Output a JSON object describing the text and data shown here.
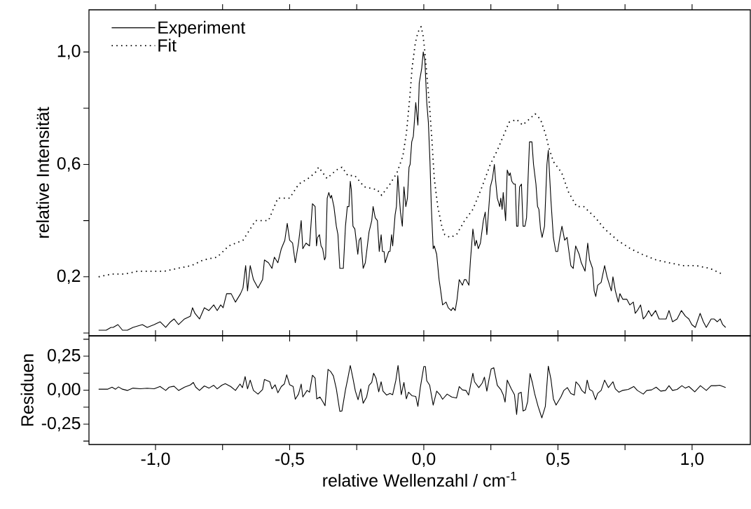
{
  "chart_data": [
    {
      "type": "line",
      "ylabel": "relative Intensität",
      "legend": "top left",
      "tick_labels": "y",
      "xlim": [
        -1.248,
        1.217
      ],
      "ylim": [
        -0.01,
        1.15
      ],
      "xticks": [
        {
          "value": -1.0,
          "label": null
        },
        {
          "value": -0.75,
          "label": null
        },
        {
          "value": -0.5,
          "label": null
        },
        {
          "value": -0.25,
          "label": null
        },
        {
          "value": 0.0,
          "label": null
        },
        {
          "value": 0.25,
          "label": null
        },
        {
          "value": 0.5,
          "label": null
        },
        {
          "value": 0.75,
          "label": null
        },
        {
          "value": 1.0,
          "label": null
        }
      ],
      "yticks": [
        {
          "value": 0.0,
          "label": null
        },
        {
          "value": 0.2,
          "label": "0,2"
        },
        {
          "value": 0.4,
          "label": null
        },
        {
          "value": 0.6,
          "label": "0,6"
        },
        {
          "value": 0.8,
          "label": null
        },
        {
          "value": 1.0,
          "label": "1,0"
        }
      ],
      "series": [
        {
          "name": "Experiment",
          "color": "#000000",
          "line_style": "solid",
          "x": [
            -1.212,
            -1.184,
            -1.166,
            -1.158,
            -1.14,
            -1.123,
            -1.105,
            -1.084,
            -1.049,
            -1.031,
            -1.005,
            -0.983,
            -0.962,
            -0.944,
            -0.931,
            -0.914,
            -0.892,
            -0.87,
            -0.862,
            -0.853,
            -0.836,
            -0.818,
            -0.801,
            -0.783,
            -0.77,
            -0.757,
            -0.748,
            -0.735,
            -0.718,
            -0.702,
            -0.683,
            -0.674,
            -0.664,
            -0.657,
            -0.647,
            -0.635,
            -0.618,
            -0.601,
            -0.594,
            -0.579,
            -0.566,
            -0.557,
            -0.544,
            -0.531,
            -0.518,
            -0.509,
            -0.5,
            -0.489,
            -0.479,
            -0.467,
            -0.457,
            -0.451,
            -0.439,
            -0.426,
            -0.415,
            -0.405,
            -0.4,
            -0.396,
            -0.389,
            -0.383,
            -0.377,
            -0.37,
            -0.366,
            -0.36,
            -0.354,
            -0.348,
            -0.344,
            -0.335,
            -0.326,
            -0.32,
            -0.313,
            -0.305,
            -0.3,
            -0.292,
            -0.285,
            -0.279,
            -0.274,
            -0.27,
            -0.264,
            -0.257,
            -0.246,
            -0.241,
            -0.235,
            -0.226,
            -0.218,
            -0.204,
            -0.194,
            -0.189,
            -0.181,
            -0.173,
            -0.166,
            -0.159,
            -0.154,
            -0.148,
            -0.144,
            -0.131,
            -0.126,
            -0.12,
            -0.116,
            -0.107,
            -0.102,
            -0.097,
            -0.087,
            -0.08,
            -0.074,
            -0.067,
            -0.061,
            -0.055,
            -0.051,
            -0.045,
            -0.039,
            -0.03,
            -0.022,
            -0.017,
            -0.008,
            -0.002,
            0.004,
            0.011,
            0.017,
            0.023,
            0.028,
            0.035,
            0.039,
            0.048,
            0.057,
            0.063,
            0.07,
            0.083,
            0.091,
            0.102,
            0.109,
            0.117,
            0.124,
            0.132,
            0.144,
            0.151,
            0.157,
            0.168,
            0.174,
            0.183,
            0.191,
            0.196,
            0.203,
            0.211,
            0.222,
            0.229,
            0.235,
            0.248,
            0.256,
            0.263,
            0.267,
            0.274,
            0.283,
            0.287,
            0.292,
            0.296,
            0.305,
            0.311,
            0.318,
            0.322,
            0.328,
            0.335,
            0.341,
            0.346,
            0.351,
            0.357,
            0.364,
            0.37,
            0.377,
            0.383,
            0.394,
            0.403,
            0.409,
            0.418,
            0.424,
            0.429,
            0.435,
            0.441,
            0.45,
            0.459,
            0.464,
            0.474,
            0.483,
            0.492,
            0.499,
            0.507,
            0.515,
            0.525,
            0.534,
            0.548,
            0.557,
            0.566,
            0.579,
            0.587,
            0.601,
            0.611,
            0.618,
            0.629,
            0.635,
            0.641,
            0.648,
            0.661,
            0.674,
            0.683,
            0.699,
            0.705,
            0.714,
            0.725,
            0.731,
            0.742,
            0.757,
            0.768,
            0.781,
            0.788,
            0.796,
            0.808,
            0.818,
            0.827,
            0.838,
            0.849,
            0.864,
            0.877,
            0.892,
            0.903,
            0.914,
            0.927,
            0.944,
            0.96,
            0.975,
            0.988,
            0.999,
            1.012,
            1.03,
            1.042,
            1.053,
            1.071,
            1.082,
            1.094,
            1.105,
            1.114,
            1.125
          ],
          "values": [
            0.01,
            0.01,
            0.02,
            0.02,
            0.03,
            0.01,
            0.01,
            0.02,
            0.03,
            0.02,
            0.03,
            0.04,
            0.02,
            0.04,
            0.05,
            0.03,
            0.05,
            0.06,
            0.09,
            0.07,
            0.05,
            0.09,
            0.08,
            0.1,
            0.08,
            0.1,
            0.09,
            0.14,
            0.14,
            0.11,
            0.14,
            0.16,
            0.24,
            0.15,
            0.24,
            0.19,
            0.16,
            0.19,
            0.26,
            0.25,
            0.23,
            0.27,
            0.25,
            0.3,
            0.33,
            0.39,
            0.33,
            0.32,
            0.25,
            0.32,
            0.4,
            0.3,
            0.32,
            0.31,
            0.46,
            0.45,
            0.31,
            0.34,
            0.35,
            0.31,
            0.3,
            0.26,
            0.27,
            0.48,
            0.5,
            0.48,
            0.49,
            0.45,
            0.38,
            0.35,
            0.23,
            0.23,
            0.23,
            0.38,
            0.45,
            0.45,
            0.54,
            0.51,
            0.38,
            0.37,
            0.28,
            0.33,
            0.34,
            0.23,
            0.25,
            0.36,
            0.4,
            0.45,
            0.41,
            0.4,
            0.29,
            0.35,
            0.29,
            0.29,
            0.25,
            0.29,
            0.29,
            0.35,
            0.31,
            0.42,
            0.45,
            0.56,
            0.43,
            0.38,
            0.52,
            0.45,
            0.48,
            0.59,
            0.6,
            0.68,
            0.7,
            0.82,
            0.74,
            0.89,
            0.94,
            1.0,
            0.97,
            0.82,
            0.75,
            0.61,
            0.45,
            0.3,
            0.31,
            0.28,
            0.19,
            0.15,
            0.1,
            0.11,
            0.09,
            0.08,
            0.09,
            0.08,
            0.12,
            0.19,
            0.17,
            0.19,
            0.19,
            0.17,
            0.26,
            0.37,
            0.31,
            0.33,
            0.3,
            0.32,
            0.4,
            0.43,
            0.35,
            0.52,
            0.55,
            0.6,
            0.55,
            0.48,
            0.45,
            0.48,
            0.44,
            0.5,
            0.4,
            0.58,
            0.56,
            0.57,
            0.54,
            0.53,
            0.53,
            0.38,
            0.38,
            0.52,
            0.53,
            0.38,
            0.38,
            0.41,
            0.68,
            0.68,
            0.6,
            0.53,
            0.45,
            0.44,
            0.37,
            0.34,
            0.38,
            0.6,
            0.65,
            0.47,
            0.34,
            0.29,
            0.29,
            0.34,
            0.38,
            0.33,
            0.34,
            0.24,
            0.23,
            0.31,
            0.28,
            0.25,
            0.22,
            0.32,
            0.26,
            0.23,
            0.15,
            0.13,
            0.17,
            0.18,
            0.24,
            0.2,
            0.15,
            0.2,
            0.15,
            0.11,
            0.14,
            0.12,
            0.12,
            0.1,
            0.11,
            0.07,
            0.08,
            0.1,
            0.05,
            0.06,
            0.08,
            0.06,
            0.08,
            0.05,
            0.05,
            0.05,
            0.08,
            0.04,
            0.05,
            0.08,
            0.06,
            0.05,
            0.03,
            0.02,
            0.07,
            0.04,
            0.02,
            0.05,
            0.05,
            0.04,
            0.05,
            0.03,
            0.02
          ]
        },
        {
          "name": "Fit",
          "color": "#000000",
          "line_style": "dotted",
          "x": [
            -1.212,
            -1.162,
            -1.114,
            -1.066,
            -1.014,
            -0.966,
            -0.918,
            -0.866,
            -0.822,
            -0.77,
            -0.727,
            -0.674,
            -0.627,
            -0.579,
            -0.544,
            -0.5,
            -0.466,
            -0.431,
            -0.405,
            -0.392,
            -0.361,
            -0.326,
            -0.305,
            -0.283,
            -0.257,
            -0.222,
            -0.174,
            -0.157,
            -0.126,
            -0.1,
            -0.078,
            -0.065,
            -0.052,
            -0.044,
            -0.032,
            -0.022,
            -0.01,
            -0.003,
            0.003,
            0.013,
            0.022,
            0.03,
            0.039,
            0.052,
            0.067,
            0.078,
            0.098,
            0.122,
            0.152,
            0.183,
            0.213,
            0.248,
            0.274,
            0.296,
            0.318,
            0.346,
            0.368,
            0.392,
            0.415,
            0.435,
            0.453,
            0.466,
            0.483,
            0.514,
            0.54,
            0.57,
            0.596,
            0.64,
            0.674,
            0.722,
            0.77,
            0.814,
            0.866,
            0.914,
            0.966,
            1.014,
            1.066,
            1.112
          ],
          "values": [
            0.2,
            0.21,
            0.21,
            0.22,
            0.22,
            0.22,
            0.23,
            0.24,
            0.26,
            0.27,
            0.31,
            0.33,
            0.4,
            0.4,
            0.48,
            0.48,
            0.53,
            0.55,
            0.57,
            0.59,
            0.55,
            0.58,
            0.59,
            0.56,
            0.56,
            0.52,
            0.51,
            0.49,
            0.53,
            0.57,
            0.63,
            0.71,
            0.84,
            0.94,
            1.03,
            1.07,
            1.09,
            1.06,
            1.01,
            0.9,
            0.8,
            0.69,
            0.55,
            0.45,
            0.38,
            0.35,
            0.34,
            0.35,
            0.4,
            0.44,
            0.51,
            0.6,
            0.65,
            0.7,
            0.75,
            0.76,
            0.74,
            0.76,
            0.78,
            0.76,
            0.71,
            0.66,
            0.61,
            0.57,
            0.5,
            0.45,
            0.45,
            0.41,
            0.37,
            0.33,
            0.3,
            0.28,
            0.26,
            0.25,
            0.24,
            0.24,
            0.23,
            0.21
          ]
        }
      ]
    },
    {
      "type": "line",
      "xlabel": "relative Wellenzahl / cm$^{-1}$",
      "ylabel": "Residuen",
      "xlim": [
        -1.248,
        1.217
      ],
      "ylim": [
        -0.4,
        0.4
      ],
      "xticks": [
        {
          "value": -1.0,
          "label": "-1,0"
        },
        {
          "value": -0.75,
          "label": null
        },
        {
          "value": -0.5,
          "label": "-0,5"
        },
        {
          "value": -0.25,
          "label": null
        },
        {
          "value": 0.0,
          "label": "0,0"
        },
        {
          "value": 0.25,
          "label": null
        },
        {
          "value": 0.5,
          "label": "0,5"
        },
        {
          "value": 0.75,
          "label": null
        },
        {
          "value": 1.0,
          "label": "1,0"
        }
      ],
      "yticks": [
        {
          "value": -0.375,
          "label": null
        },
        {
          "value": -0.25,
          "label": "-0,25"
        },
        {
          "value": -0.125,
          "label": null
        },
        {
          "value": 0.0,
          "label": "0,00"
        },
        {
          "value": 0.125,
          "label": null
        },
        {
          "value": 0.25,
          "label": "0,25"
        },
        {
          "value": 0.375,
          "label": null
        }
      ],
      "series": [
        {
          "color": "#000000",
          "line_style": "solid",
          "x": [
            -1.212,
            -1.179,
            -1.162,
            -1.149,
            -1.138,
            -1.123,
            -1.105,
            -1.084,
            -1.057,
            -1.031,
            -1.005,
            -0.983,
            -0.962,
            -0.949,
            -0.931,
            -0.914,
            -0.892,
            -0.87,
            -0.859,
            -0.85,
            -0.836,
            -0.818,
            -0.801,
            -0.783,
            -0.77,
            -0.753,
            -0.74,
            -0.72,
            -0.702,
            -0.685,
            -0.676,
            -0.666,
            -0.657,
            -0.647,
            -0.635,
            -0.618,
            -0.601,
            -0.594,
            -0.574,
            -0.566,
            -0.554,
            -0.544,
            -0.531,
            -0.52,
            -0.511,
            -0.5,
            -0.487,
            -0.479,
            -0.467,
            -0.457,
            -0.451,
            -0.435,
            -0.426,
            -0.415,
            -0.405,
            -0.399,
            -0.387,
            -0.374,
            -0.368,
            -0.357,
            -0.348,
            -0.337,
            -0.326,
            -0.313,
            -0.305,
            -0.292,
            -0.283,
            -0.274,
            -0.265,
            -0.255,
            -0.245,
            -0.235,
            -0.226,
            -0.213,
            -0.204,
            -0.194,
            -0.187,
            -0.178,
            -0.168,
            -0.159,
            -0.152,
            -0.139,
            -0.126,
            -0.116,
            -0.104,
            -0.096,
            -0.084,
            -0.074,
            -0.065,
            -0.057,
            -0.044,
            -0.03,
            -0.022,
            -0.013,
            0.0,
            0.006,
            0.011,
            0.022,
            0.035,
            0.048,
            0.061,
            0.07,
            0.087,
            0.104,
            0.122,
            0.132,
            0.144,
            0.157,
            0.167,
            0.183,
            0.189,
            0.205,
            0.218,
            0.226,
            0.235,
            0.244,
            0.251,
            0.261,
            0.274,
            0.287,
            0.296,
            0.303,
            0.311,
            0.326,
            0.338,
            0.346,
            0.353,
            0.363,
            0.37,
            0.379,
            0.387,
            0.396,
            0.405,
            0.413,
            0.426,
            0.44,
            0.453,
            0.464,
            0.474,
            0.483,
            0.493,
            0.511,
            0.522,
            0.535,
            0.548,
            0.561,
            0.567,
            0.579,
            0.589,
            0.601,
            0.609,
            0.618,
            0.629,
            0.64,
            0.648,
            0.661,
            0.674,
            0.688,
            0.705,
            0.714,
            0.727,
            0.74,
            0.762,
            0.783,
            0.796,
            0.818,
            0.831,
            0.849,
            0.866,
            0.883,
            0.901,
            0.914,
            0.927,
            0.944,
            0.962,
            0.975,
            0.988,
            1.01,
            1.031,
            1.053,
            1.071,
            1.088,
            1.103,
            1.125
          ],
          "values": [
            0.007,
            0.007,
            0.022,
            0.007,
            0.024,
            0.007,
            -0.002,
            0.015,
            0.01,
            0.014,
            0.01,
            0.027,
            -0.002,
            0.022,
            0.029,
            -0.002,
            0.022,
            0.039,
            0.057,
            0.022,
            -0.002,
            0.031,
            0.015,
            0.036,
            0.01,
            0.036,
            0.048,
            0.027,
            -0.002,
            0.045,
            0.019,
            0.1,
            0.01,
            0.074,
            -0.002,
            -0.029,
            0.005,
            0.079,
            0.062,
            0.01,
            0.039,
            -0.019,
            0.027,
            0.045,
            0.113,
            0.04,
            0.027,
            -0.067,
            -0.029,
            0.045,
            -0.05,
            -0.002,
            -0.015,
            0.11,
            0.088,
            -0.064,
            -0.05,
            -0.093,
            -0.115,
            0.153,
            0.139,
            0.105,
            0.01,
            -0.156,
            -0.153,
            0.002,
            0.088,
            0.182,
            0.096,
            -0.007,
            -0.07,
            0.01,
            -0.096,
            -0.05,
            0.036,
            0.057,
            0.125,
            0.088,
            -0.012,
            0.062,
            -0.007,
            -0.036,
            -0.024,
            -0.033,
            0.074,
            0.182,
            -0.033,
            0.057,
            -0.064,
            -0.015,
            -0.041,
            -0.046,
            -0.119,
            0.019,
            0.174,
            0.174,
            0.07,
            0.036,
            -0.11,
            -0.007,
            -0.036,
            -0.067,
            -0.029,
            -0.05,
            -0.058,
            0.027,
            0.002,
            -0.002,
            -0.036,
            0.125,
            0.062,
            0.019,
            0.053,
            0.096,
            -0.007,
            0.088,
            0.156,
            0.165,
            0.036,
            0.005,
            -0.033,
            -0.088,
            0.074,
            0.01,
            -0.033,
            -0.179,
            -0.024,
            -0.015,
            -0.153,
            -0.144,
            -0.084,
            0.122,
            0.053,
            -0.024,
            -0.119,
            -0.204,
            -0.119,
            0.177,
            0.079,
            -0.064,
            -0.11,
            -0.05,
            -0.002,
            0.019,
            -0.024,
            -0.036,
            0.062,
            0.036,
            -0.002,
            -0.024,
            0.074,
            0.005,
            -0.007,
            -0.07,
            -0.024,
            -0.002,
            0.074,
            0.019,
            0.062,
            0.01,
            -0.015,
            -0.002,
            0.005,
            0.027,
            -0.002,
            -0.029,
            -0.002,
            0.002,
            0.022,
            -0.007,
            -0.002,
            0.033,
            -0.002,
            0.005,
            0.033,
            0.015,
            0.027,
            -0.012,
            0.033,
            -0.002,
            0.033,
            0.033,
            0.036,
            0.019
          ]
        }
      ]
    }
  ]
}
